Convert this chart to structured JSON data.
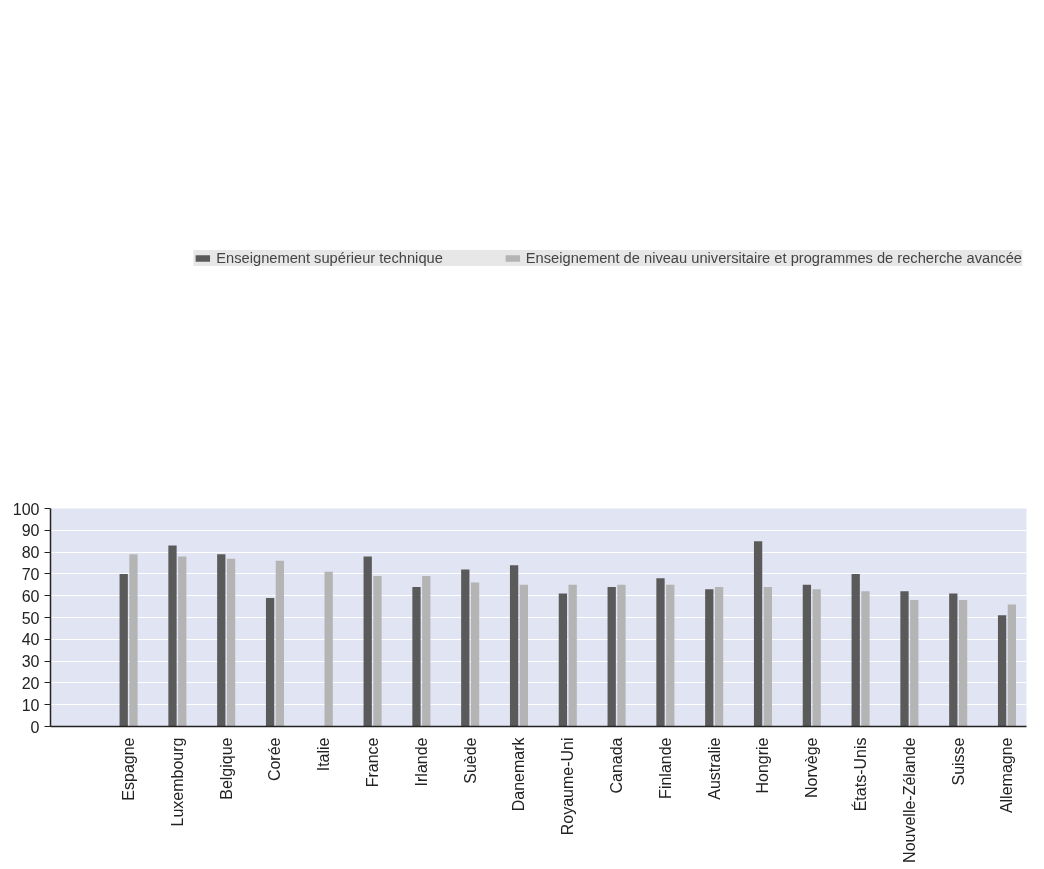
{
  "chart_data": {
    "type": "bar",
    "categories": [
      "Espagne",
      "Luxembourg",
      "Belgique",
      "Corée",
      "Italie",
      "France",
      "Irlande",
      "Suède",
      "Danemark",
      "Royaume-Uni",
      "Canada",
      "Finlande",
      "Australie",
      "Hongrie",
      "Norvège",
      "États-Unis",
      "Nouvelle-Zélande",
      "Suisse",
      "Allemagne"
    ],
    "series": [
      {
        "name": "Enseignement supérieur technique",
        "color": "#5a5a5a",
        "values": [
          70,
          83,
          79,
          59,
          null,
          78,
          64,
          72,
          74,
          61,
          64,
          68,
          63,
          85,
          65,
          70,
          62,
          61,
          51
        ]
      },
      {
        "name": "Enseignement de niveau universitaire et programmes de recherche avancée",
        "color": "#b4b4b4",
        "values": [
          79,
          78,
          77,
          76,
          71,
          69,
          69,
          66,
          65,
          65,
          65,
          65,
          64,
          64,
          63,
          62,
          58,
          58,
          56
        ]
      }
    ],
    "ylim": [
      0,
      100
    ],
    "yticks": [
      0,
      10,
      20,
      30,
      40,
      50,
      60,
      70,
      80,
      90,
      100
    ],
    "grid": "y",
    "legend": "top"
  }
}
